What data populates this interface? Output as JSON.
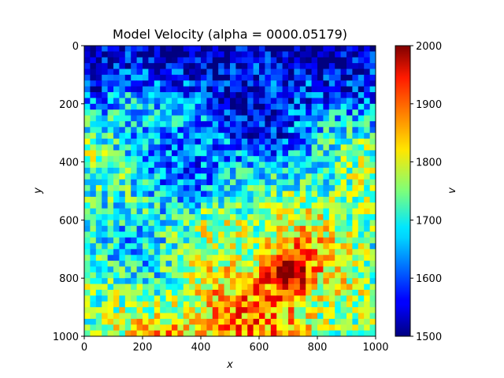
{
  "chart_data": {
    "type": "heatmap",
    "title": "Model Velocity (alpha = 0000.05179)",
    "xlabel": "x",
    "ylabel": "y",
    "colorbar_label": "v",
    "xlim": [
      0,
      1000
    ],
    "ylim": [
      1000,
      0
    ],
    "x_ticks": [
      "0",
      "200",
      "400",
      "600",
      "800",
      "1000"
    ],
    "y_ticks": [
      "0",
      "200",
      "400",
      "600",
      "800",
      "1000"
    ],
    "colorbar_range": [
      1500,
      2000
    ],
    "colorbar_ticks": [
      "1500",
      "1600",
      "1700",
      "1800",
      "1900",
      "2000"
    ],
    "colormap": "jet",
    "grid": false,
    "cells": 50,
    "description": "Noisy velocity field: low values (~1500-1600) concentrated near the top (y<300), mid values (~1650-1750) across the middle, higher values (~1750-1900) toward the bottom and lower-right, with a red anomaly near x~700, y~780."
  }
}
